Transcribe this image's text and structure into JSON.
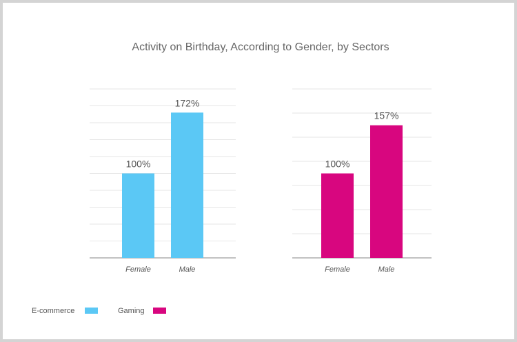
{
  "title": "Activity on Birthday, According to Gender, by Sectors",
  "colors": {
    "ecommerce": "#5bc8f5",
    "gaming": "#d8067f"
  },
  "legend": [
    {
      "label": "E-commerce",
      "color": "#5bc8f5"
    },
    {
      "label": "Gaming",
      "color": "#d8067f"
    }
  ],
  "chart_data": [
    {
      "type": "bar",
      "title": "Activity on Birthday, According to Gender, by Sectors",
      "series_name": "E-commerce",
      "categories": [
        "Female",
        "Male"
      ],
      "values": [
        100,
        172
      ],
      "value_labels": [
        "100%",
        "172%"
      ],
      "ylim": [
        0,
        200
      ],
      "grid": true,
      "color": "#5bc8f5"
    },
    {
      "type": "bar",
      "series_name": "Gaming",
      "categories": [
        "Female",
        "Male"
      ],
      "values": [
        100,
        157
      ],
      "value_labels": [
        "100%",
        "157%"
      ],
      "ylim": [
        0,
        200
      ],
      "grid": true,
      "color": "#d8067f"
    }
  ]
}
